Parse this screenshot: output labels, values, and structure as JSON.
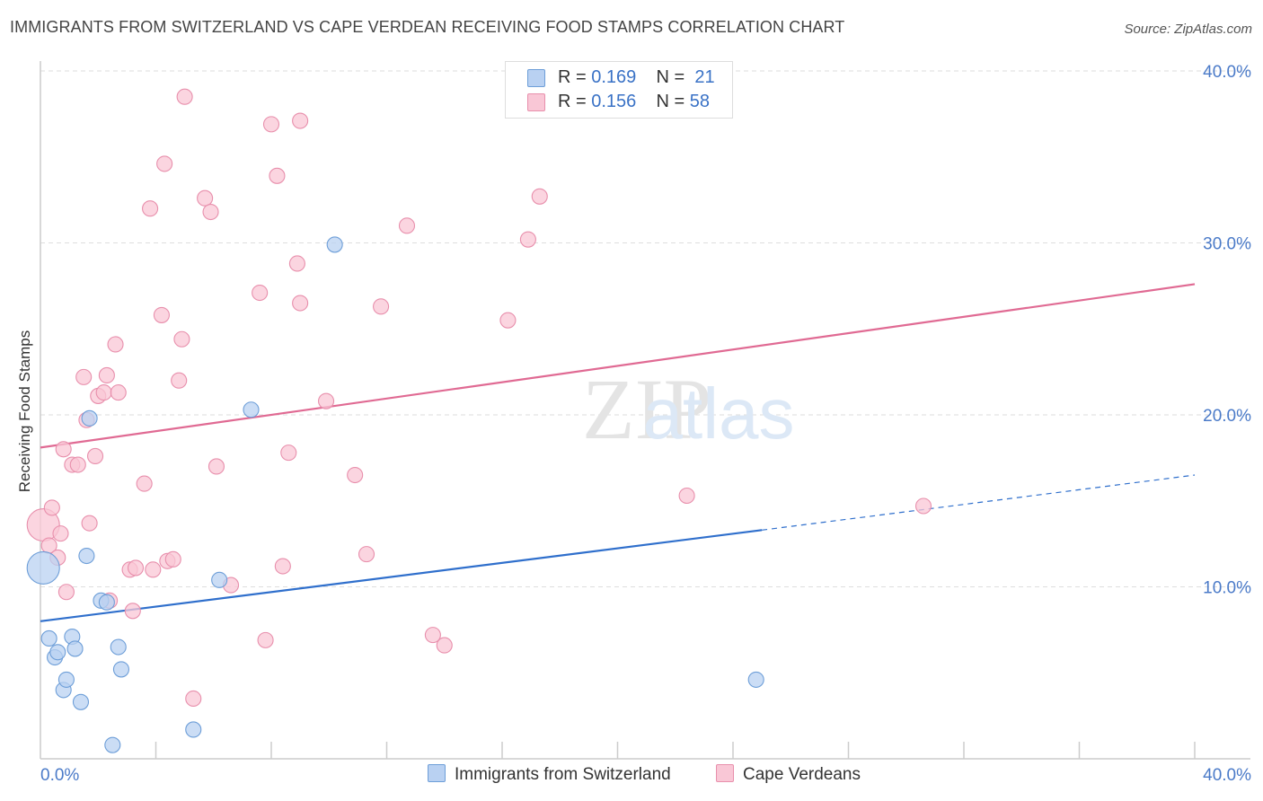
{
  "title": "IMMIGRANTS FROM SWITZERLAND VS CAPE VERDEAN RECEIVING FOOD STAMPS CORRELATION CHART",
  "source": "Source: ZipAtlas.com",
  "watermark": {
    "zip": "ZIP",
    "atlas": "atlas"
  },
  "legend_top": {
    "r_label": "R =",
    "n_label": "N =",
    "rows": [
      {
        "r": "0.169",
        "n": "21"
      },
      {
        "r": "0.156",
        "n": "58"
      }
    ]
  },
  "colors": {
    "blue_fill": "#b9d1f2",
    "blue_stroke": "#6d9ed8",
    "blue_line": "#2f6fcc",
    "pink_fill": "#f9c7d6",
    "pink_stroke": "#e88fac",
    "pink_line": "#e06a93",
    "tick_text": "#4a7ac8"
  },
  "chart_data": {
    "type": "scatter",
    "title": "IMMIGRANTS FROM SWITZERLAND VS CAPE VERDEAN RECEIVING FOOD STAMPS CORRELATION CHART",
    "xlabel": "",
    "ylabel": "Receiving Food Stamps",
    "xlim": [
      0,
      40
    ],
    "ylim": [
      0,
      40
    ],
    "x_tick_labels": [
      "0.0%",
      "40.0%"
    ],
    "y_tick_labels": [
      {
        "value": 10,
        "label": "10.0%"
      },
      {
        "value": 20,
        "label": "20.0%"
      },
      {
        "value": 30,
        "label": "30.0%"
      },
      {
        "value": 40,
        "label": "40.0%"
      }
    ],
    "grid": true,
    "series": [
      {
        "name": "Immigrants from Switzerland",
        "color": "blue",
        "r": 0.169,
        "n": 21,
        "trend": {
          "x0": 0,
          "y0": 8.0,
          "x1": 25.0,
          "y1": 13.3,
          "dash_x1": 40,
          "dash_y1": 16.5
        },
        "points": [
          {
            "x": 0.1,
            "y": 11.1,
            "big": true
          },
          {
            "x": 0.3,
            "y": 7.0
          },
          {
            "x": 0.5,
            "y": 5.9
          },
          {
            "x": 0.6,
            "y": 6.2
          },
          {
            "x": 0.8,
            "y": 4.0
          },
          {
            "x": 0.9,
            "y": 4.6
          },
          {
            "x": 1.1,
            "y": 7.1
          },
          {
            "x": 1.2,
            "y": 6.4
          },
          {
            "x": 1.4,
            "y": 3.3
          },
          {
            "x": 1.6,
            "y": 11.8
          },
          {
            "x": 1.7,
            "y": 19.8
          },
          {
            "x": 2.1,
            "y": 9.2
          },
          {
            "x": 2.3,
            "y": 9.1
          },
          {
            "x": 2.5,
            "y": 0.8
          },
          {
            "x": 2.7,
            "y": 6.5
          },
          {
            "x": 2.8,
            "y": 5.2
          },
          {
            "x": 5.3,
            "y": 1.7
          },
          {
            "x": 6.2,
            "y": 10.4
          },
          {
            "x": 7.3,
            "y": 20.3
          },
          {
            "x": 10.2,
            "y": 29.9
          },
          {
            "x": 24.8,
            "y": 4.6
          }
        ]
      },
      {
        "name": "Cape Verdeans",
        "color": "pink",
        "r": 0.156,
        "n": 58,
        "trend": {
          "x0": 0,
          "y0": 18.1,
          "x1": 40,
          "y1": 27.6
        },
        "points": [
          {
            "x": 0.1,
            "y": 13.6,
            "big": true
          },
          {
            "x": 0.3,
            "y": 12.4
          },
          {
            "x": 0.4,
            "y": 14.6
          },
          {
            "x": 0.6,
            "y": 11.7
          },
          {
            "x": 0.7,
            "y": 13.1
          },
          {
            "x": 0.8,
            "y": 18.0
          },
          {
            "x": 0.9,
            "y": 9.7
          },
          {
            "x": 1.1,
            "y": 17.1
          },
          {
            "x": 1.3,
            "y": 17.1
          },
          {
            "x": 1.5,
            "y": 22.2
          },
          {
            "x": 1.6,
            "y": 19.7
          },
          {
            "x": 1.7,
            "y": 13.7
          },
          {
            "x": 1.9,
            "y": 17.6
          },
          {
            "x": 2.0,
            "y": 21.1
          },
          {
            "x": 2.2,
            "y": 21.3
          },
          {
            "x": 2.3,
            "y": 22.3
          },
          {
            "x": 2.4,
            "y": 9.2
          },
          {
            "x": 2.6,
            "y": 24.1
          },
          {
            "x": 2.7,
            "y": 21.3
          },
          {
            "x": 3.1,
            "y": 11.0
          },
          {
            "x": 3.2,
            "y": 8.6
          },
          {
            "x": 3.3,
            "y": 11.1
          },
          {
            "x": 3.6,
            "y": 16.0
          },
          {
            "x": 3.8,
            "y": 32.0
          },
          {
            "x": 3.9,
            "y": 11.0
          },
          {
            "x": 4.2,
            "y": 25.8
          },
          {
            "x": 4.3,
            "y": 34.6
          },
          {
            "x": 4.4,
            "y": 11.5
          },
          {
            "x": 4.6,
            "y": 11.6
          },
          {
            "x": 4.8,
            "y": 22.0
          },
          {
            "x": 4.9,
            "y": 24.4
          },
          {
            "x": 5.0,
            "y": 38.5
          },
          {
            "x": 5.3,
            "y": 3.5
          },
          {
            "x": 5.7,
            "y": 32.6
          },
          {
            "x": 5.9,
            "y": 31.8
          },
          {
            "x": 6.1,
            "y": 17.0
          },
          {
            "x": 6.6,
            "y": 10.1
          },
          {
            "x": 7.6,
            "y": 27.1
          },
          {
            "x": 7.8,
            "y": 6.9
          },
          {
            "x": 8.0,
            "y": 36.9
          },
          {
            "x": 8.2,
            "y": 33.9
          },
          {
            "x": 8.4,
            "y": 11.2
          },
          {
            "x": 8.6,
            "y": 17.8
          },
          {
            "x": 8.9,
            "y": 28.8
          },
          {
            "x": 9.0,
            "y": 37.1
          },
          {
            "x": 9.0,
            "y": 26.5
          },
          {
            "x": 9.9,
            "y": 20.8
          },
          {
            "x": 10.9,
            "y": 16.5
          },
          {
            "x": 11.3,
            "y": 11.9
          },
          {
            "x": 11.8,
            "y": 26.3
          },
          {
            "x": 12.7,
            "y": 31.0
          },
          {
            "x": 13.6,
            "y": 7.2
          },
          {
            "x": 14.0,
            "y": 6.6
          },
          {
            "x": 16.2,
            "y": 25.5
          },
          {
            "x": 16.9,
            "y": 30.2
          },
          {
            "x": 17.3,
            "y": 32.7
          },
          {
            "x": 22.4,
            "y": 15.3
          },
          {
            "x": 30.6,
            "y": 14.7
          }
        ]
      }
    ]
  }
}
